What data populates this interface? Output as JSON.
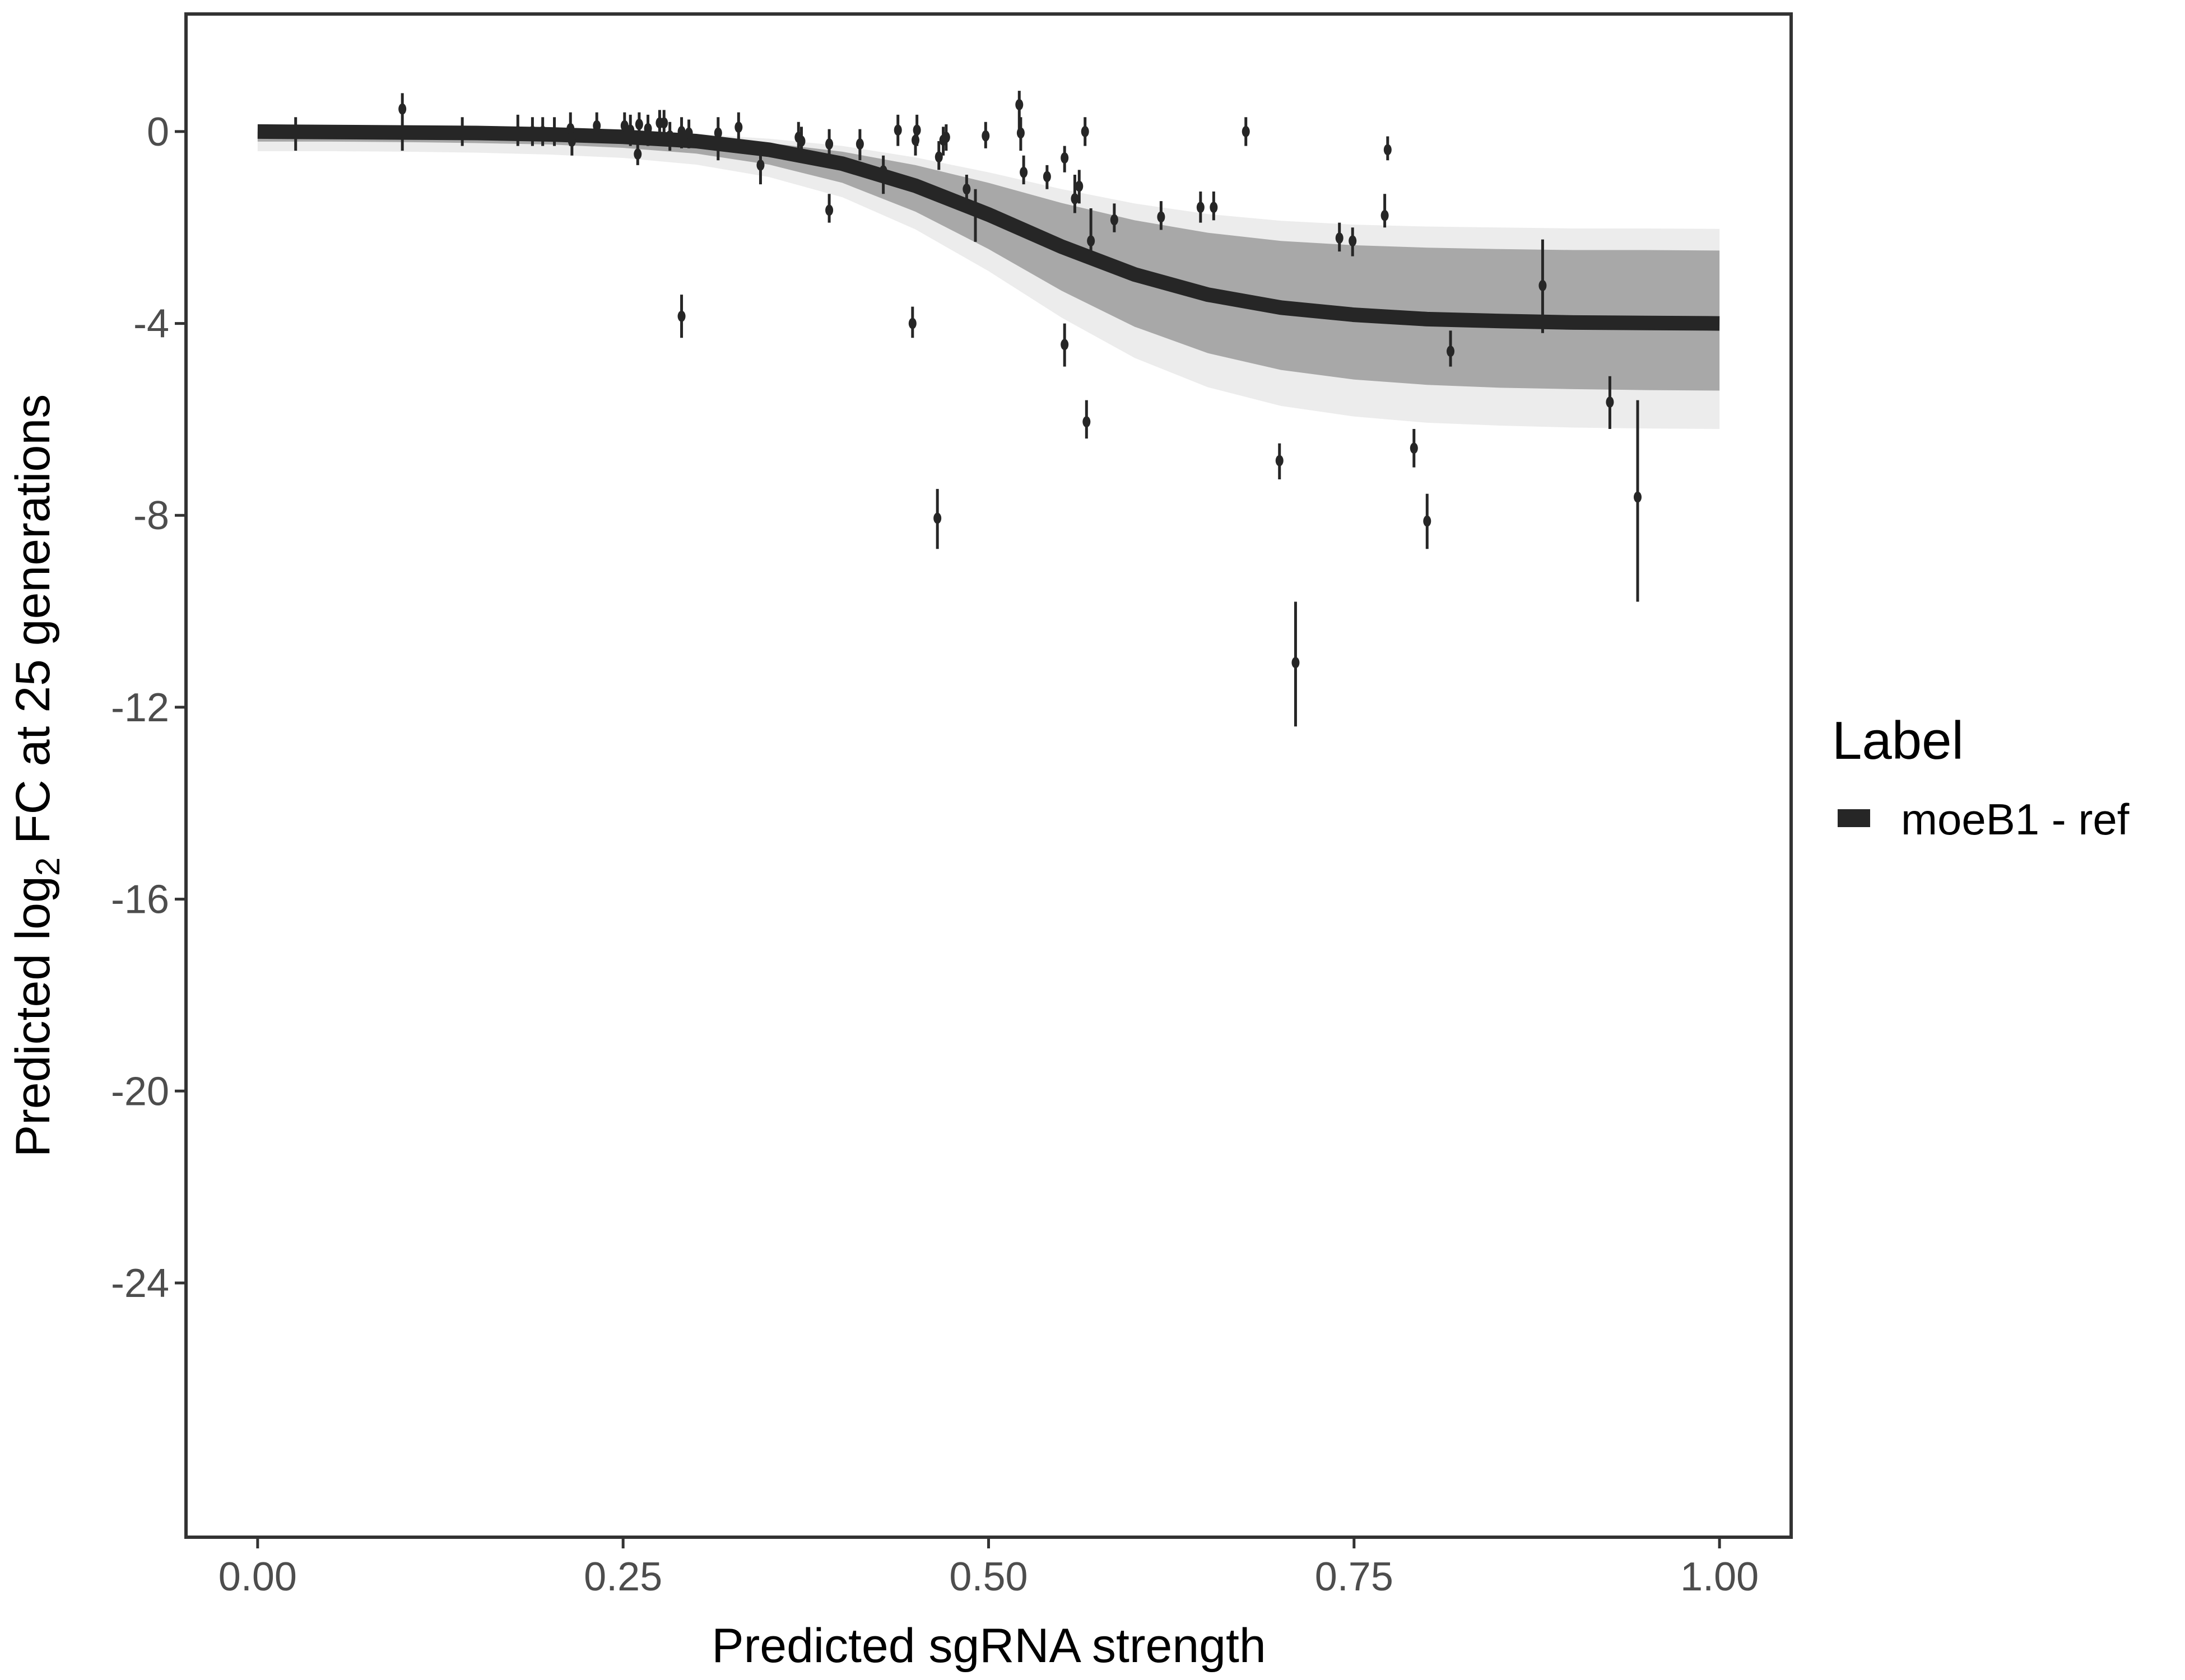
{
  "chart_data": {
    "type": "line",
    "title": "",
    "xlabel": "Predicted sgRNA strength",
    "ylabel_parts": [
      "Predicted  log",
      "2",
      " FC at 25 generations"
    ],
    "xlim": [
      -0.049,
      1.049
    ],
    "ylim": [
      -29.3,
      2.45
    ],
    "xticks": [
      0,
      0.25,
      0.5,
      0.75,
      1
    ],
    "xtick_labels": [
      "0.00",
      "0.25",
      "0.50",
      "0.75",
      "1.00"
    ],
    "yticks": [
      0,
      -4,
      -8,
      -12,
      -16,
      -20,
      -24
    ],
    "ytick_labels": [
      "0",
      "-4",
      "-8",
      "-12",
      "-16",
      "-20",
      "-24"
    ],
    "grid": false,
    "legend": {
      "title": "Label",
      "placement": "right",
      "entries": [
        {
          "name": "moeB1 - ref",
          "color": "#262626"
        }
      ]
    },
    "colors": {
      "fit": "#262626",
      "ribbon_inner": "#a8a8a8",
      "ribbon_outer": "#ececec",
      "points": "#262626",
      "frame": "#333333"
    },
    "fit_curve": {
      "x": [
        0,
        0.05,
        0.1,
        0.15,
        0.2,
        0.25,
        0.3,
        0.35,
        0.4,
        0.45,
        0.5,
        0.55,
        0.6,
        0.65,
        0.7,
        0.75,
        0.8,
        0.85,
        0.9,
        0.95,
        1
      ],
      "y": [
        0,
        -0.01,
        -0.02,
        -0.03,
        -0.06,
        -0.11,
        -0.2,
        -0.38,
        -0.67,
        -1.13,
        -1.73,
        -2.4,
        -2.98,
        -3.4,
        -3.67,
        -3.82,
        -3.91,
        -3.95,
        -3.98,
        -3.99,
        -4.0
      ],
      "inner_upper": [
        0,
        0,
        -0.01,
        -0.02,
        -0.03,
        -0.07,
        -0.12,
        -0.24,
        -0.42,
        -0.7,
        -1.07,
        -1.49,
        -1.85,
        -2.11,
        -2.28,
        -2.37,
        -2.42,
        -2.45,
        -2.47,
        -2.47,
        -2.48
      ],
      "inner_lower": [
        -0.21,
        -0.21,
        -0.22,
        -0.24,
        -0.27,
        -0.34,
        -0.46,
        -0.69,
        -1.07,
        -1.67,
        -2.45,
        -3.32,
        -4.07,
        -4.62,
        -4.97,
        -5.17,
        -5.28,
        -5.34,
        -5.37,
        -5.39,
        -5.4
      ],
      "outer_upper": [
        0.05,
        0.05,
        0.04,
        0.03,
        0.02,
        -0.01,
        -0.05,
        -0.15,
        -0.3,
        -0.54,
        -0.85,
        -1.2,
        -1.5,
        -1.72,
        -1.86,
        -1.94,
        -1.98,
        -2.0,
        -2.02,
        -2.02,
        -2.03
      ],
      "outer_lower": [
        -0.41,
        -0.41,
        -0.42,
        -0.44,
        -0.48,
        -0.55,
        -0.69,
        -0.95,
        -1.37,
        -2.04,
        -2.91,
        -3.88,
        -4.72,
        -5.33,
        -5.72,
        -5.94,
        -6.07,
        -6.13,
        -6.17,
        -6.19,
        -6.2
      ]
    },
    "points": [
      {
        "x": 0.026,
        "y": 0.0,
        "lo": -0.4,
        "hi": 0.3
      },
      {
        "x": 0.099,
        "y": 0.47,
        "lo": -0.4,
        "hi": 0.8
      },
      {
        "x": 0.14,
        "y": 0.0,
        "lo": -0.3,
        "hi": 0.3
      },
      {
        "x": 0.178,
        "y": 0.0,
        "lo": -0.3,
        "hi": 0.35
      },
      {
        "x": 0.188,
        "y": 0.0,
        "lo": -0.3,
        "hi": 0.3
      },
      {
        "x": 0.195,
        "y": 0.0,
        "lo": -0.3,
        "hi": 0.3
      },
      {
        "x": 0.203,
        "y": -0.03,
        "lo": -0.3,
        "hi": 0.3
      },
      {
        "x": 0.214,
        "y": 0.06,
        "lo": -0.3,
        "hi": 0.4
      },
      {
        "x": 0.215,
        "y": -0.2,
        "lo": -0.5,
        "hi": 0.1
      },
      {
        "x": 0.232,
        "y": 0.12,
        "lo": -0.2,
        "hi": 0.4
      },
      {
        "x": 0.251,
        "y": 0.12,
        "lo": -0.2,
        "hi": 0.4
      },
      {
        "x": 0.255,
        "y": 0.03,
        "lo": -0.3,
        "hi": 0.35
      },
      {
        "x": 0.26,
        "y": -0.47,
        "lo": -0.7,
        "hi": -0.2
      },
      {
        "x": 0.261,
        "y": 0.15,
        "lo": -0.2,
        "hi": 0.4
      },
      {
        "x": 0.267,
        "y": 0.06,
        "lo": -0.3,
        "hi": 0.35
      },
      {
        "x": 0.275,
        "y": 0.18,
        "lo": -0.2,
        "hi": 0.45
      },
      {
        "x": 0.278,
        "y": 0.18,
        "lo": -0.1,
        "hi": 0.45
      },
      {
        "x": 0.282,
        "y": -0.09,
        "lo": -0.4,
        "hi": 0.2
      },
      {
        "x": 0.29,
        "y": 0.0,
        "lo": -0.35,
        "hi": 0.3
      },
      {
        "x": 0.29,
        "y": -3.85,
        "lo": -4.3,
        "hi": -3.4
      },
      {
        "x": 0.295,
        "y": -0.03,
        "lo": -0.35,
        "hi": 0.25
      },
      {
        "x": 0.315,
        "y": -0.03,
        "lo": -0.6,
        "hi": 0.3
      },
      {
        "x": 0.329,
        "y": 0.09,
        "lo": -0.2,
        "hi": 0.4
      },
      {
        "x": 0.344,
        "y": -0.7,
        "lo": -1.1,
        "hi": -0.35
      },
      {
        "x": 0.37,
        "y": -0.12,
        "lo": -0.4,
        "hi": 0.2
      },
      {
        "x": 0.372,
        "y": -0.2,
        "lo": -0.5,
        "hi": 0.1
      },
      {
        "x": 0.391,
        "y": -0.26,
        "lo": -0.6,
        "hi": 0.05
      },
      {
        "x": 0.391,
        "y": -1.64,
        "lo": -1.9,
        "hi": -1.3
      },
      {
        "x": 0.412,
        "y": -0.26,
        "lo": -0.6,
        "hi": 0.05
      },
      {
        "x": 0.428,
        "y": -0.82,
        "lo": -1.3,
        "hi": -0.5
      },
      {
        "x": 0.438,
        "y": 0.03,
        "lo": -0.3,
        "hi": 0.35
      },
      {
        "x": 0.448,
        "y": -4.0,
        "lo": -4.3,
        "hi": -3.65
      },
      {
        "x": 0.45,
        "y": -0.18,
        "lo": -0.5,
        "hi": 0.1
      },
      {
        "x": 0.451,
        "y": 0.03,
        "lo": -0.3,
        "hi": 0.35
      },
      {
        "x": 0.465,
        "y": -8.06,
        "lo": -8.7,
        "hi": -7.45
      },
      {
        "x": 0.466,
        "y": -0.53,
        "lo": -0.8,
        "hi": -0.2
      },
      {
        "x": 0.469,
        "y": -0.18,
        "lo": -0.5,
        "hi": 0.1
      },
      {
        "x": 0.471,
        "y": -0.12,
        "lo": -0.4,
        "hi": 0.15
      },
      {
        "x": 0.485,
        "y": -1.2,
        "lo": -1.5,
        "hi": -0.9
      },
      {
        "x": 0.491,
        "y": -1.64,
        "lo": -2.3,
        "hi": -1.2
      },
      {
        "x": 0.498,
        "y": -0.09,
        "lo": -0.35,
        "hi": 0.2
      },
      {
        "x": 0.521,
        "y": 0.56,
        "lo": 0.0,
        "hi": 0.85
      },
      {
        "x": 0.522,
        "y": -0.03,
        "lo": -0.4,
        "hi": 0.3
      },
      {
        "x": 0.524,
        "y": -0.85,
        "lo": -1.1,
        "hi": -0.5
      },
      {
        "x": 0.54,
        "y": -0.94,
        "lo": -1.2,
        "hi": -0.7
      },
      {
        "x": 0.552,
        "y": -0.55,
        "lo": -0.85,
        "hi": -0.3
      },
      {
        "x": 0.552,
        "y": -4.44,
        "lo": -4.9,
        "hi": -4.0
      },
      {
        "x": 0.559,
        "y": -1.4,
        "lo": -1.7,
        "hi": -0.9
      },
      {
        "x": 0.562,
        "y": -1.14,
        "lo": -1.5,
        "hi": -0.8
      },
      {
        "x": 0.566,
        "y": 0.0,
        "lo": -0.3,
        "hi": 0.3
      },
      {
        "x": 0.567,
        "y": -6.05,
        "lo": -6.4,
        "hi": -5.6
      },
      {
        "x": 0.57,
        "y": -2.28,
        "lo": -2.55,
        "hi": -1.6
      },
      {
        "x": 0.586,
        "y": -1.84,
        "lo": -2.1,
        "hi": -1.5
      },
      {
        "x": 0.618,
        "y": -1.78,
        "lo": -2.05,
        "hi": -1.45
      },
      {
        "x": 0.645,
        "y": -1.58,
        "lo": -1.9,
        "hi": -1.25
      },
      {
        "x": 0.654,
        "y": -1.58,
        "lo": -1.85,
        "hi": -1.25
      },
      {
        "x": 0.676,
        "y": 0.0,
        "lo": -0.3,
        "hi": 0.3
      },
      {
        "x": 0.699,
        "y": -6.86,
        "lo": -7.25,
        "hi": -6.5
      },
      {
        "x": 0.71,
        "y": -11.07,
        "lo": -12.4,
        "hi": -9.8
      },
      {
        "x": 0.74,
        "y": -2.22,
        "lo": -2.5,
        "hi": -1.9
      },
      {
        "x": 0.749,
        "y": -2.28,
        "lo": -2.6,
        "hi": -2.0
      },
      {
        "x": 0.771,
        "y": -1.75,
        "lo": -2.0,
        "hi": -1.3
      },
      {
        "x": 0.773,
        "y": -0.38,
        "lo": -0.6,
        "hi": -0.1
      },
      {
        "x": 0.791,
        "y": -6.6,
        "lo": -7.0,
        "hi": -6.2
      },
      {
        "x": 0.8,
        "y": -8.12,
        "lo": -8.7,
        "hi": -7.55
      },
      {
        "x": 0.816,
        "y": -4.58,
        "lo": -4.9,
        "hi": -4.15
      },
      {
        "x": 0.879,
        "y": -3.21,
        "lo": -4.2,
        "hi": -2.25
      },
      {
        "x": 0.925,
        "y": -5.64,
        "lo": -6.2,
        "hi": -5.1
      },
      {
        "x": 0.944,
        "y": -7.62,
        "lo": -9.8,
        "hi": -5.6
      }
    ]
  }
}
